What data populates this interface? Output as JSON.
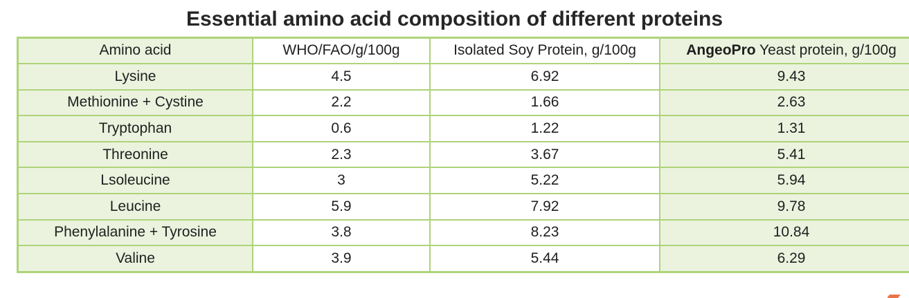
{
  "title": "Essential amino acid composition of different proteins",
  "colors": {
    "cell_green": "#ebf3de",
    "border_green": "#aed379",
    "text_dark": "#1f1f1f",
    "logo_orange": "#e8744a"
  },
  "header_detail": {
    "angeopro_bold": "AngeoPro",
    "angeopro_rest": " Yeast protein, g/100g"
  },
  "chart_data": {
    "type": "table",
    "title": "Essential amino acid composition of different proteins",
    "columns": [
      "Amino acid",
      "WHO/FAO/g/100g",
      "Isolated Soy Protein, g/100g",
      "AngeoPro Yeast protein, g/100g"
    ],
    "rows": [
      [
        "Lysine",
        "4.5",
        "6.92",
        "9.43"
      ],
      [
        "Methionine + Cystine",
        "2.2",
        "1.66",
        "2.63"
      ],
      [
        "Tryptophan",
        "0.6",
        "1.22",
        "1.31"
      ],
      [
        "Threonine",
        "2.3",
        "3.67",
        "5.41"
      ],
      [
        "Lsoleucine",
        "3",
        "5.22",
        "5.94"
      ],
      [
        "Leucine",
        "5.9",
        "7.92",
        "9.78"
      ],
      [
        "Phenylalanine + Tyrosine",
        "3.8",
        "8.23",
        "10.84"
      ],
      [
        "Valine",
        "3.9",
        "5.44",
        "6.29"
      ]
    ],
    "layout_hints": {
      "highlighted_columns": [
        "Amino acid",
        "AngeoPro Yeast protein, g/100g"
      ],
      "highlight_fill": "#ebf3de",
      "grid": true
    }
  }
}
